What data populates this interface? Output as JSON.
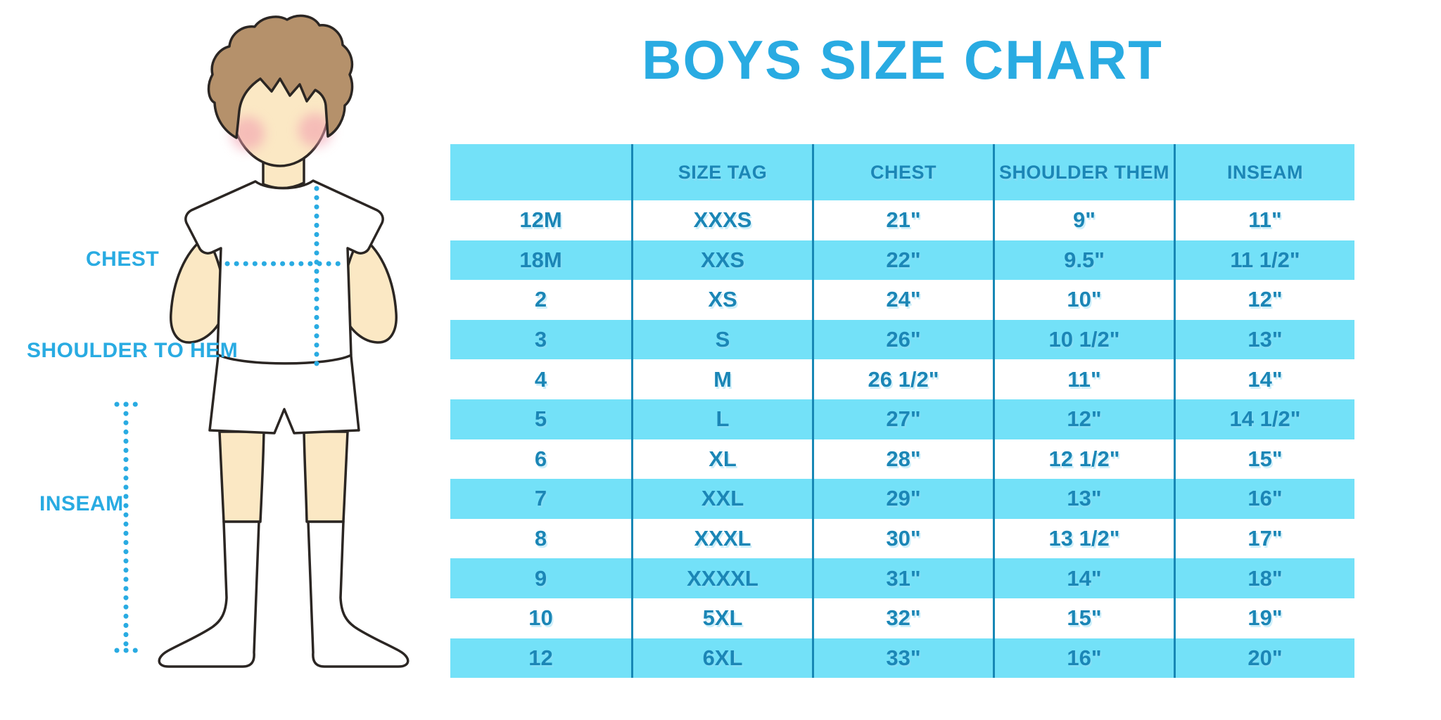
{
  "title": "BOYS SIZE CHART",
  "figure_labels": {
    "chest": "CHEST",
    "shoulder_to_hem": "SHOULDER TO HEM",
    "inseam": "INSEAM"
  },
  "chart_data": {
    "type": "table",
    "title": "BOYS SIZE CHART",
    "columns": [
      "",
      "SIZE TAG",
      "CHEST",
      "SHOULDER THEM",
      "INSEAM"
    ],
    "rows": [
      [
        "12M",
        "XXXS",
        "21\"",
        "9\"",
        "11\""
      ],
      [
        "18M",
        "XXS",
        "22\"",
        "9.5\"",
        "11 1/2\""
      ],
      [
        "2",
        "XS",
        "24\"",
        "10\"",
        "12\""
      ],
      [
        "3",
        "S",
        "26\"",
        "10 1/2\"",
        "13\""
      ],
      [
        "4",
        "M",
        "26 1/2\"",
        "11\"",
        "14\""
      ],
      [
        "5",
        "L",
        "27\"",
        "12\"",
        "14 1/2\""
      ],
      [
        "6",
        "XL",
        "28\"",
        "12 1/2\"",
        "15\""
      ],
      [
        "7",
        "XXL",
        "29\"",
        "13\"",
        "16\""
      ],
      [
        "8",
        "XXXL",
        "30\"",
        "13 1/2\"",
        "17\""
      ],
      [
        "9",
        "XXXXL",
        "31\"",
        "14\"",
        "18\""
      ],
      [
        "10",
        "5XL",
        "32\"",
        "15\"",
        "19\""
      ],
      [
        "12",
        "6XL",
        "33\"",
        "16\"",
        "20\""
      ]
    ],
    "layout": {
      "header_background": "#73E1F8",
      "row_stripe_colors": [
        "#FFFFFF",
        "#73E1F8"
      ],
      "column_divider_color": "#1787B5",
      "horizontal_gridlines": false
    }
  },
  "colors": {
    "accent_blue": "#29ABE2",
    "table_fill_cyan": "#73E1F8",
    "table_text": "#1B86B6",
    "divider": "#1787B5",
    "skin": "#FBE8C4",
    "hair": "#B5916B",
    "blush": "#F2A0B0",
    "outline": "#2B2623"
  }
}
